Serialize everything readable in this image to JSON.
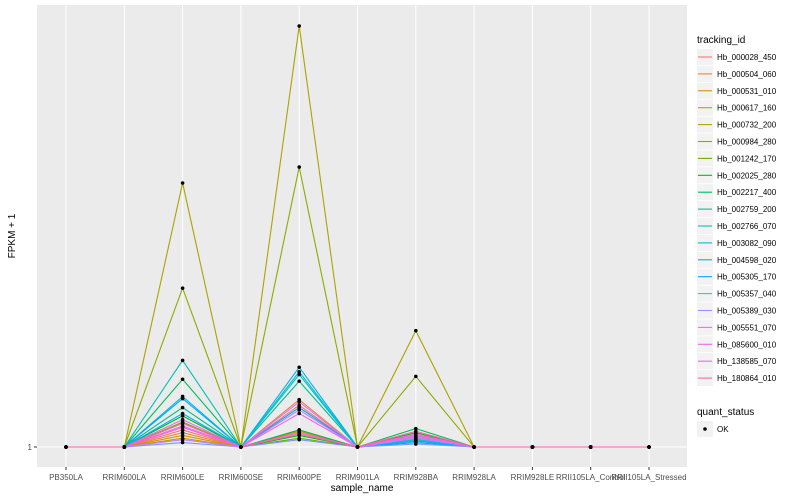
{
  "chart_data": {
    "type": "line",
    "title": "",
    "xlabel": "sample_name",
    "ylabel": "FPKM + 1",
    "y_scale": "log",
    "y_ticks": [
      {
        "value": 1,
        "label": "1"
      }
    ],
    "grid": true,
    "legend_placement": "right",
    "categories": [
      "PB350LA",
      "RRIM600LA",
      "RRIM600LE",
      "RRIM600SE",
      "RRIM600PE",
      "RRIM901LA",
      "RRIM928BA",
      "RRIM928LA",
      "RRIM928LE",
      "RRII105LA_Control",
      "RRII105LA_Stressed"
    ],
    "legend_title": "tracking_id",
    "series": [
      {
        "name": "Hb_000028_450",
        "color": "#F8766D",
        "values": [
          1,
          1,
          1.12,
          1,
          1.32,
          1,
          1.05,
          1,
          1,
          1,
          1
        ]
      },
      {
        "name": "Hb_000504_060",
        "color": "#EC8239",
        "values": [
          1,
          1,
          1.1,
          1,
          1.37,
          1,
          1.06,
          1,
          1,
          1,
          1
        ]
      },
      {
        "name": "Hb_000531_010",
        "color": "#DB8E00",
        "values": [
          1,
          1,
          1.06,
          1,
          1.11,
          1,
          1.04,
          1,
          1,
          1,
          1
        ]
      },
      {
        "name": "Hb_000617_160",
        "color": "#C79800",
        "values": [
          1,
          1,
          1.08,
          1,
          1.12,
          1,
          1.05,
          1,
          1,
          1,
          1
        ]
      },
      {
        "name": "Hb_000732_200",
        "color": "#AEA200",
        "values": [
          1,
          1,
          5.8,
          1,
          16.5,
          1,
          2.17,
          1,
          1,
          1,
          1
        ]
      },
      {
        "name": "Hb_000984_280",
        "color": "#8FAA00",
        "values": [
          1,
          1,
          2.88,
          1,
          6.45,
          1,
          1.6,
          1,
          1,
          1,
          1
        ]
      },
      {
        "name": "Hb_001242_170",
        "color": "#64B200",
        "values": [
          1,
          1,
          1.18,
          1,
          1.06,
          1,
          1.08,
          1,
          1,
          1,
          1
        ]
      },
      {
        "name": "Hb_002025_280",
        "color": "#00B81B",
        "values": [
          1,
          1,
          1.23,
          1,
          1.08,
          1,
          1.1,
          1,
          1,
          1,
          1
        ]
      },
      {
        "name": "Hb_002217_400",
        "color": "#00BD5C",
        "values": [
          1,
          1,
          1.57,
          1,
          1.12,
          1,
          1.13,
          1,
          1,
          1,
          1
        ]
      },
      {
        "name": "Hb_002759_200",
        "color": "#00C08E",
        "values": [
          1,
          1,
          1.3,
          1,
          1.55,
          1,
          1.07,
          1,
          1,
          1,
          1
        ]
      },
      {
        "name": "Hb_002766_070",
        "color": "#00C1B7",
        "values": [
          1,
          1,
          1.78,
          1,
          1.65,
          1,
          1.06,
          1,
          1,
          1,
          1
        ]
      },
      {
        "name": "Hb_003082_090",
        "color": "#00BDDC",
        "values": [
          1,
          1,
          1.4,
          1,
          1.62,
          1,
          1.05,
          1,
          1,
          1,
          1
        ]
      },
      {
        "name": "Hb_004598_020",
        "color": "#00B2F3",
        "values": [
          1,
          1,
          1.25,
          1,
          1.7,
          1,
          1.04,
          1,
          1,
          1,
          1
        ]
      },
      {
        "name": "Hb_005305_170",
        "color": "#00A6FF",
        "values": [
          1,
          1,
          1.38,
          1,
          1.3,
          1,
          1.03,
          1,
          1,
          1,
          1
        ]
      },
      {
        "name": "Hb_005357_040",
        "color": "#7997FF",
        "values": [
          1,
          1,
          1.03,
          1,
          1.05,
          1,
          1.02,
          1,
          1,
          1,
          1
        ]
      },
      {
        "name": "Hb_005389_030",
        "color": "#B385FF",
        "values": [
          1,
          1,
          1.05,
          1,
          1.28,
          1,
          1.06,
          1,
          1,
          1,
          1
        ]
      },
      {
        "name": "Hb_005551_070",
        "color": "#D874FD",
        "values": [
          1,
          1,
          1.15,
          1,
          1.35,
          1,
          1.07,
          1,
          1,
          1,
          1
        ]
      },
      {
        "name": "Hb_085600_010",
        "color": "#EF67EB",
        "values": [
          1,
          1,
          1.2,
          1,
          1.25,
          1,
          1.08,
          1,
          1,
          1,
          1
        ]
      },
      {
        "name": "Hb_138585_070",
        "color": "#FD61D3",
        "values": [
          1,
          1,
          1.14,
          1,
          1.1,
          1,
          1.09,
          1,
          1,
          1,
          1
        ]
      },
      {
        "name": "Hb_180864_010",
        "color": "#FF65AE",
        "values": [
          1,
          1,
          1.17,
          1,
          1.09,
          1,
          1.11,
          1,
          1,
          1,
          1
        ]
      }
    ],
    "shape_legend": {
      "title": "quant_status",
      "items": [
        {
          "label": "OK",
          "shape": "point"
        }
      ]
    }
  }
}
